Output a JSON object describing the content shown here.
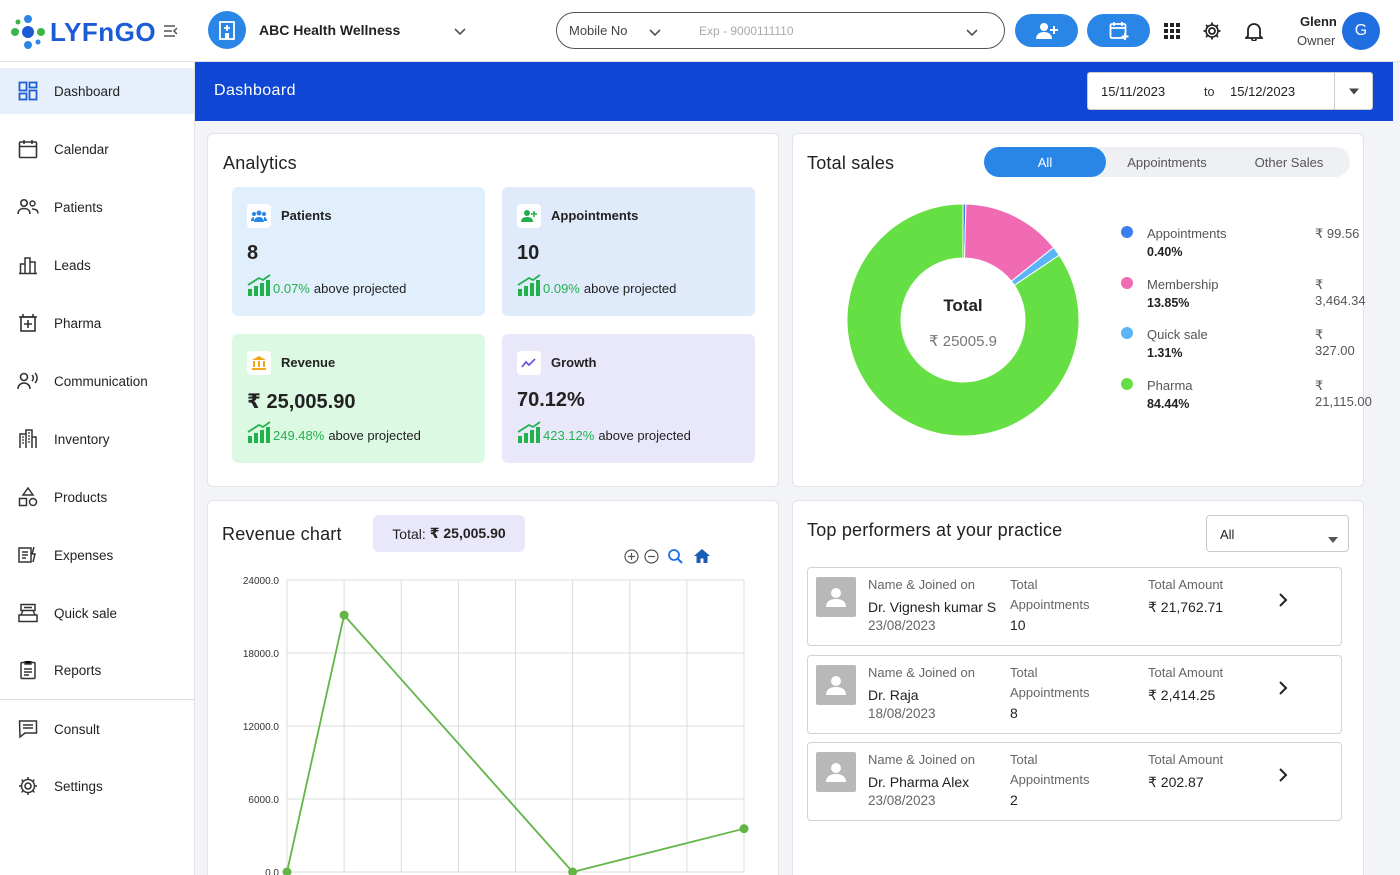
{
  "brand": {
    "logo_text": "LYFnGO"
  },
  "header": {
    "clinic_name": "ABC Health Wellness",
    "search_type": "Mobile No",
    "search_placeholder": "Exp - 9000111110",
    "user_name": "Glenn",
    "user_role": "Owner",
    "avatar_initial": "G"
  },
  "sidebar": {
    "items": [
      {
        "label": "Dashboard",
        "icon": "dashboard-icon",
        "active": true
      },
      {
        "label": "Calendar",
        "icon": "calendar-icon"
      },
      {
        "label": "Patients",
        "icon": "patients-icon"
      },
      {
        "label": "Leads",
        "icon": "leads-icon"
      },
      {
        "label": "Pharma",
        "icon": "pharma-icon"
      },
      {
        "label": "Communication",
        "icon": "communication-icon"
      },
      {
        "label": "Inventory",
        "icon": "inventory-icon"
      },
      {
        "label": "Products",
        "icon": "products-icon"
      },
      {
        "label": "Expenses",
        "icon": "expenses-icon"
      },
      {
        "label": "Quick sale",
        "icon": "quick-sale-icon"
      },
      {
        "label": "Reports",
        "icon": "reports-icon"
      },
      {
        "label": "Consult",
        "icon": "consult-icon"
      },
      {
        "label": "Settings",
        "icon": "settings-icon"
      }
    ]
  },
  "page": {
    "title": "Dashboard",
    "date_from": "15/11/2023",
    "date_to_label": "to",
    "date_to": "15/12/2023"
  },
  "analytics": {
    "title": "Analytics",
    "cards": [
      {
        "label": "Patients",
        "value": "8",
        "pct": "0.07%",
        "suffix": "above projected",
        "icon": "patients-icon",
        "bg": "#e1effd"
      },
      {
        "label": "Appointments",
        "value": "10",
        "pct": "0.09%",
        "suffix": "above projected",
        "icon": "add-user-icon",
        "bg": "#dfeafb"
      },
      {
        "label": "Revenue",
        "value": "₹ 25,005.90",
        "pct": "249.48%",
        "suffix": "above projected",
        "icon": "bank-icon",
        "bg": "#dcfae3"
      },
      {
        "label": "Growth",
        "value": "70.12%",
        "pct": "423.12%",
        "suffix": "above projected",
        "icon": "trend-icon",
        "bg": "#e9e8fb"
      }
    ]
  },
  "sales": {
    "title": "Total sales",
    "tabs": [
      "All",
      "Appointments",
      "Other Sales"
    ],
    "donut_total_label": "Total",
    "donut_total_value": "₹ 25005.9",
    "legend": [
      {
        "name": "Appointments",
        "pct": "0.40%",
        "amount": "₹ 99.56",
        "color": "#3b7ef0",
        "value": 99.56
      },
      {
        "name": "Membership",
        "pct": "13.85%",
        "amount": "₹ 3,464.34",
        "color": "#f06ab4",
        "value": 3464.34
      },
      {
        "name": "Quick sale",
        "pct": "1.31%",
        "amount": "₹ 327.00",
        "color": "#5ab4f5",
        "value": 327.0
      },
      {
        "name": "Pharma",
        "pct": "84.44%",
        "amount": "₹ 21,115.00",
        "color": "#66df44",
        "value": 21115.0
      }
    ]
  },
  "revenue_chart": {
    "title": "Revenue chart",
    "total_label": "Total:",
    "total_value": "₹ 25,005.90"
  },
  "chart_data": {
    "type": "line",
    "title": "",
    "xlabel": "",
    "ylabel": "",
    "y_ticks": [
      "24000.0",
      "18000.0",
      "12000.0",
      "6000.0",
      "0.0"
    ],
    "ylim": [
      0,
      24000
    ],
    "x": [
      0,
      1,
      2,
      3,
      4,
      5,
      6,
      7,
      8
    ],
    "series": [
      {
        "x": [
          0,
          1,
          5,
          8
        ],
        "values": [
          0,
          21115,
          0,
          3560
        ],
        "color": "#62b547"
      }
    ],
    "grid": true
  },
  "performers": {
    "title": "Top performers at your practice",
    "filter": "All",
    "col1": "Name & Joined on",
    "col2_line1": "Total",
    "col2_line2": "Appointments",
    "col3": "Total Amount",
    "rows": [
      {
        "name": "Dr. Vignesh kumar S",
        "joined": "23/08/2023",
        "appointments": "10",
        "amount": "₹ 21,762.71"
      },
      {
        "name": "Dr. Raja",
        "joined": "18/08/2023",
        "appointments": "8",
        "amount": "₹ 2,414.25"
      },
      {
        "name": "Dr. Pharma Alex",
        "joined": "23/08/2023",
        "appointments": "2",
        "amount": "₹ 202.87"
      }
    ]
  }
}
